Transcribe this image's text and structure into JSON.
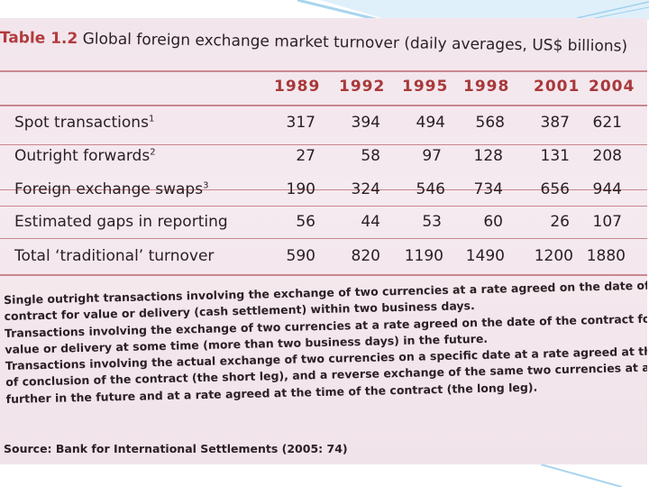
{
  "table": {
    "title_prefix": "Table 1.2",
    "title_text": "Global foreign exchange market turnover (daily averages, US$ billions)",
    "years": [
      "1989",
      "1992",
      "1995",
      "1998",
      "2001",
      "2004"
    ],
    "rows": [
      {
        "label": "Spot transactions",
        "note": "1",
        "values": [
          "317",
          "394",
          "494",
          "568",
          "387",
          "621"
        ]
      },
      {
        "label": "Outright forwards",
        "note": "2",
        "values": [
          "27",
          "58",
          "97",
          "128",
          "131",
          "208"
        ]
      },
      {
        "label": "Foreign exchange swaps",
        "note": "3",
        "values": [
          "190",
          "324",
          "546",
          "734",
          "656",
          "944"
        ]
      },
      {
        "label": "Estimated gaps in reporting",
        "note": "",
        "values": [
          "56",
          "44",
          "53",
          "60",
          "26",
          "107"
        ]
      },
      {
        "label": "Total ‘traditional’ turnover",
        "note": "",
        "values": [
          "590",
          "820",
          "1190",
          "1490",
          "1200",
          "1880"
        ]
      }
    ]
  },
  "notes": [
    "Single outright transactions involving the exchange of two currencies at a rate agreed on the date of the",
    "contract for value or delivery (cash settlement) within two business days.",
    "Transactions involving the exchange of two currencies at a rate agreed on the date of the contract for",
    "value or delivery at some time (more than two business days) in the future.",
    "Transactions involving the actual exchange of two currencies on a specific date at a rate agreed at the time",
    "of conclusion of the contract (the short leg), and a reverse exchange of the same two currencies at a date",
    "further in the future and at a rate agreed at the time of the contract (the long leg)."
  ],
  "source": "Source: Bank for International Settlements (2005: 74)",
  "colors": {
    "accent": "#b23b3d",
    "rule": "#c9878f",
    "paper": "#f3e7ed",
    "frame": "#8fc6e6"
  }
}
